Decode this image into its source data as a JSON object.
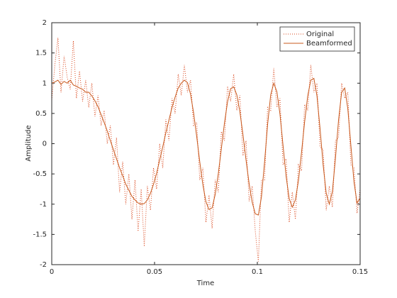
{
  "chart_data": {
    "type": "line",
    "xlabel": "Time",
    "ylabel": "Amplitude",
    "xlim": [
      0,
      0.15
    ],
    "ylim": [
      -2,
      2
    ],
    "xticks": [
      0,
      0.05,
      0.1,
      0.15
    ],
    "yticks": [
      -2,
      -1.5,
      -1,
      -0.5,
      0,
      0.5,
      1,
      1.5,
      2
    ],
    "legend": "northeast",
    "x": [
      0,
      0.0015,
      0.003,
      0.0045,
      0.006,
      0.0075,
      0.009,
      0.0105,
      0.012,
      0.0135,
      0.015,
      0.0165,
      0.018,
      0.0195,
      0.021,
      0.0225,
      0.024,
      0.0255,
      0.027,
      0.0285,
      0.03,
      0.0315,
      0.033,
      0.0345,
      0.036,
      0.0375,
      0.039,
      0.0405,
      0.042,
      0.0435,
      0.045,
      0.0465,
      0.048,
      0.0495,
      0.051,
      0.0525,
      0.054,
      0.0555,
      0.057,
      0.0585,
      0.06,
      0.0615,
      0.063,
      0.0645,
      0.066,
      0.0675,
      0.069,
      0.0705,
      0.072,
      0.0735,
      0.075,
      0.0765,
      0.078,
      0.0795,
      0.081,
      0.0825,
      0.084,
      0.0855,
      0.087,
      0.0885,
      0.09,
      0.0915,
      0.093,
      0.0945,
      0.096,
      0.0975,
      0.099,
      0.1005,
      0.102,
      0.1035,
      0.105,
      0.1065,
      0.108,
      0.1095,
      0.111,
      0.1125,
      0.114,
      0.1155,
      0.117,
      0.1185,
      0.12,
      0.1215,
      0.123,
      0.1245,
      0.126,
      0.1275,
      0.129,
      0.1305,
      0.132,
      0.1335,
      0.135,
      0.1365,
      0.138,
      0.1395,
      0.141,
      0.1425,
      0.144,
      0.1455,
      0.147,
      0.1485,
      0.15
    ],
    "series": [
      {
        "name": "Original",
        "color": "#d9441a",
        "style": "dotted",
        "values": [
          0.72,
          1.3,
          1.75,
          0.85,
          1.45,
          1.1,
          0.9,
          1.7,
          0.75,
          1.2,
          0.7,
          1.05,
          0.6,
          1.0,
          0.45,
          0.8,
          0.3,
          0.55,
          0.0,
          0.3,
          -0.35,
          0.1,
          -0.8,
          -0.3,
          -1.0,
          -0.5,
          -1.25,
          -0.6,
          -1.45,
          -0.75,
          -1.7,
          -0.7,
          -1.1,
          -0.4,
          -0.75,
          0.0,
          -0.4,
          0.4,
          0.05,
          0.75,
          0.5,
          1.15,
          0.8,
          1.3,
          0.85,
          1.05,
          0.3,
          0.35,
          -0.6,
          -0.4,
          -1.3,
          -0.85,
          -1.4,
          -0.6,
          -0.8,
          0.2,
          0.05,
          0.95,
          0.7,
          1.15,
          0.55,
          0.8,
          -0.2,
          0.05,
          -0.95,
          -0.7,
          -1.45,
          -1.95,
          -0.6,
          -0.6,
          0.6,
          0.55,
          1.25,
          0.6,
          0.75,
          -0.35,
          -0.25,
          -1.3,
          -0.8,
          -1.25,
          -0.35,
          -0.45,
          0.65,
          0.55,
          1.3,
          0.85,
          1.0,
          -0.05,
          -0.1,
          -1.1,
          -0.7,
          -1.05,
          0.05,
          0.1,
          1.0,
          0.75,
          0.85,
          -0.35,
          -0.4,
          -1.15,
          -0.75
        ]
      },
      {
        "name": "Beamformed",
        "color": "#c8581c",
        "style": "solid",
        "values": [
          1.0,
          1.02,
          1.05,
          0.98,
          1.03,
          1.0,
          1.05,
          0.97,
          0.95,
          0.92,
          0.9,
          0.85,
          0.85,
          0.79,
          0.71,
          0.61,
          0.48,
          0.35,
          0.21,
          0.05,
          -0.1,
          -0.25,
          -0.4,
          -0.53,
          -0.67,
          -0.77,
          -0.87,
          -0.93,
          -0.98,
          -1.0,
          -0.99,
          -0.93,
          -0.82,
          -0.67,
          -0.49,
          -0.27,
          -0.05,
          0.18,
          0.39,
          0.6,
          0.77,
          0.92,
          1.0,
          1.05,
          1.01,
          0.82,
          0.51,
          0.12,
          -0.3,
          -0.68,
          -0.96,
          -1.09,
          -1.06,
          -0.84,
          -0.5,
          -0.08,
          0.34,
          0.69,
          0.91,
          0.94,
          0.81,
          0.53,
          0.15,
          -0.27,
          -0.66,
          -0.97,
          -1.16,
          -1.18,
          -0.88,
          -0.31,
          0.32,
          0.81,
          1.0,
          0.86,
          0.49,
          -0.03,
          -0.54,
          -0.91,
          -1.05,
          -0.93,
          -0.61,
          -0.14,
          0.36,
          0.79,
          1.05,
          1.08,
          0.79,
          0.25,
          -0.35,
          -0.82,
          -1.0,
          -0.79,
          -0.24,
          0.39,
          0.85,
          0.92,
          0.58,
          -0.03,
          -0.63,
          -0.98,
          -0.9
        ]
      }
    ]
  }
}
